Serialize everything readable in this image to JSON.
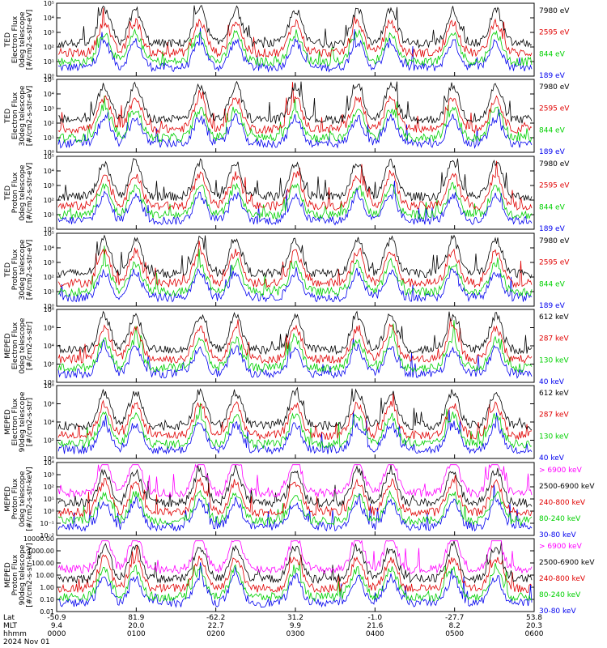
{
  "chart_data": [
    {
      "type": "line",
      "ylabel": [
        "TED",
        "Electron Flux",
        "0deg telescope",
        "[#/cm2-s-str-eV]"
      ],
      "scale": "log",
      "ylim": [
        1,
        100000
      ],
      "yticks": [
        "10⁰",
        "10¹",
        "10²",
        "10³",
        "10⁴",
        "10⁵"
      ],
      "series": [
        {
          "name": "7980 eV",
          "color": "#000000"
        },
        {
          "name": "2595 eV",
          "color": "#e00000"
        },
        {
          "name": "844 eV",
          "color": "#00d000"
        },
        {
          "name": "189 eV",
          "color": "#0000ee"
        }
      ]
    },
    {
      "type": "line",
      "ylabel": [
        "TED",
        "Electron Flux",
        "30deg telescope",
        "[#/cm2-s-str-eV]"
      ],
      "scale": "log",
      "ylim": [
        1,
        100000
      ],
      "yticks": [
        "10⁰",
        "10¹",
        "10²",
        "10³",
        "10⁴",
        "10⁵"
      ],
      "series": [
        {
          "name": "7980 eV",
          "color": "#000000"
        },
        {
          "name": "2595 eV",
          "color": "#e00000"
        },
        {
          "name": "844 eV",
          "color": "#00d000"
        },
        {
          "name": "189 eV",
          "color": "#0000ee"
        }
      ]
    },
    {
      "type": "line",
      "ylabel": [
        "TED",
        "Proton Flux",
        "0deg telescope",
        "[#/cm2-s-str-eV]"
      ],
      "scale": "log",
      "ylim": [
        1,
        100000
      ],
      "yticks": [
        "10⁰",
        "10¹",
        "10²",
        "10³",
        "10⁴",
        "10⁵"
      ],
      "series": [
        {
          "name": "7980 eV",
          "color": "#000000"
        },
        {
          "name": "2595 eV",
          "color": "#e00000"
        },
        {
          "name": "844 eV",
          "color": "#00d000"
        },
        {
          "name": "189 eV",
          "color": "#0000ee"
        }
      ]
    },
    {
      "type": "line",
      "ylabel": [
        "TED",
        "Proton Flux",
        "30deg telescope",
        "[#/cm2-s-str-eV]"
      ],
      "scale": "log",
      "ylim": [
        1,
        100000
      ],
      "yticks": [
        "10⁰",
        "10¹",
        "10²",
        "10³",
        "10⁴",
        "10⁵"
      ],
      "series": [
        {
          "name": "7980 eV",
          "color": "#000000"
        },
        {
          "name": "2595 eV",
          "color": "#e00000"
        },
        {
          "name": "844 eV",
          "color": "#00d000"
        },
        {
          "name": "189 eV",
          "color": "#0000ee"
        }
      ]
    },
    {
      "type": "line",
      "ylabel": [
        "MEPED",
        "Electron Flux",
        "0deg telescope",
        "[#/cm2-s-str]"
      ],
      "scale": "log",
      "ylim": [
        1,
        10000000
      ],
      "yticks": [
        "10⁰",
        "10²",
        "10⁴",
        "10⁶",
        "10⁸"
      ],
      "series": [
        {
          "name": "612 keV",
          "color": "#000000"
        },
        {
          "name": "287 keV",
          "color": "#e00000"
        },
        {
          "name": "130 keV",
          "color": "#00d000"
        },
        {
          "name": "40 keV",
          "color": "#0000ee"
        }
      ]
    },
    {
      "type": "line",
      "ylabel": [
        "MEPED",
        "Electron Flux",
        "90deg telescope",
        "[#/cm2-s-str]"
      ],
      "scale": "log",
      "ylim": [
        1,
        10000000
      ],
      "yticks": [
        "10⁰",
        "10²",
        "10⁴",
        "10⁶",
        "10⁸"
      ],
      "series": [
        {
          "name": "612 keV",
          "color": "#000000"
        },
        {
          "name": "287 keV",
          "color": "#e00000"
        },
        {
          "name": "130 keV",
          "color": "#00d000"
        },
        {
          "name": "40 keV",
          "color": "#0000ee"
        }
      ]
    },
    {
      "type": "line",
      "ylabel": [
        "MEPED",
        "Proton Flux",
        "0deg telescope",
        "[#/cm2-s-str-keV]"
      ],
      "scale": "log",
      "ylim": [
        0.01,
        10000
      ],
      "yticks": [
        "10⁻²",
        "10⁻¹",
        "10⁰",
        "10¹",
        "10²",
        "10³",
        "10⁴"
      ],
      "series": [
        {
          "name": "> 6900 keV",
          "color": "#ff00ff"
        },
        {
          "name": "2500-6900 keV",
          "color": "#000000"
        },
        {
          "name": "240-800 keV",
          "color": "#e00000"
        },
        {
          "name": "80-240 keV",
          "color": "#00d000"
        },
        {
          "name": "30-80 keV",
          "color": "#0000ee"
        }
      ]
    },
    {
      "type": "line",
      "ylabel": [
        "MEPED",
        "Proton Flux",
        "90deg telescope",
        "[#/cm2-s-str-keV]"
      ],
      "scale": "log",
      "ylim": [
        0.01,
        10000
      ],
      "yticks": [
        "0.01",
        "0.10",
        "1.00",
        "10.00",
        "100.00",
        "1000.00",
        "10000.00"
      ],
      "series": [
        {
          "name": "> 6900 keV",
          "color": "#ff00ff"
        },
        {
          "name": "2500-6900 keV",
          "color": "#000000"
        },
        {
          "name": "240-800 keV",
          "color": "#e00000"
        },
        {
          "name": "80-240 keV",
          "color": "#00d000"
        },
        {
          "name": "30-80 keV",
          "color": "#0000ee"
        }
      ]
    }
  ],
  "x_axis": {
    "rows": [
      {
        "label": "Lat",
        "values": [
          "-50.9",
          "81.9",
          "-62.2",
          "31.2",
          "-1.0",
          "-27.7",
          "53.8"
        ]
      },
      {
        "label": "MLT",
        "values": [
          "9.4",
          "20.0",
          "22.7",
          "9.9",
          "21.6",
          "8.2",
          "20.3"
        ]
      },
      {
        "label": "hhmm",
        "values": [
          "0000",
          "0100",
          "0200",
          "0300",
          "0400",
          "0500",
          "0600"
        ]
      }
    ],
    "date": "2024 Nov 01"
  }
}
